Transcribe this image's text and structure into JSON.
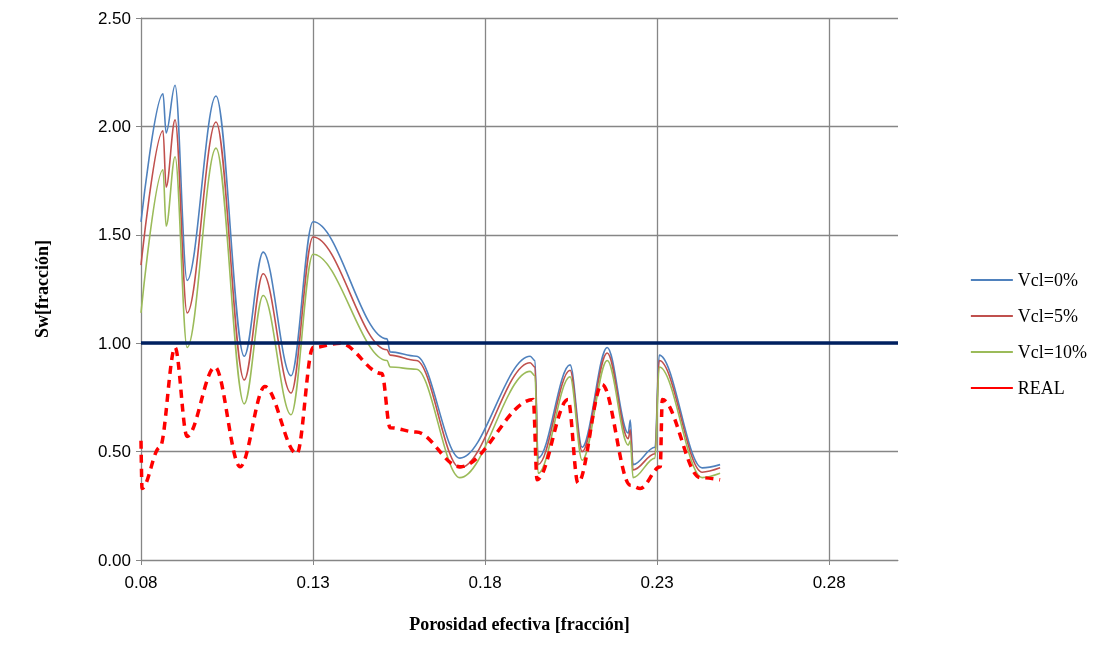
{
  "chart_data": {
    "type": "line",
    "xlabel": "Porosidad efectiva [fracción]",
    "ylabel": "Sw[fracción]",
    "xlim": [
      0.08,
      0.3
    ],
    "xticks": [
      0.08,
      0.13,
      0.18,
      0.23,
      0.28
    ],
    "ylim": [
      0,
      2.5
    ],
    "yticks": [
      {
        "value": 0,
        "label": "0.00"
      },
      {
        "value": 0.5,
        "label": "0.50"
      },
      {
        "value": 1,
        "label": "1.00"
      },
      {
        "value": 1.5,
        "label": "1.50"
      },
      {
        "value": 2,
        "label": "2.00"
      },
      {
        "value": 2.5,
        "label": "2.50"
      }
    ],
    "grid": true,
    "legend": "right",
    "marker": "none",
    "ref_lines": [
      {
        "axis": "y",
        "value": 1,
        "color": "#002060",
        "line_style": "solid"
      }
    ],
    "series": [
      {
        "name": "Vcl=0%",
        "color": "#4f81bd",
        "line_style": "solid",
        "x": [
          0.08,
          0.0864,
          0.0873,
          0.0899,
          0.0934,
          0.1018,
          0.11,
          0.1155,
          0.1236,
          0.13,
          0.1515,
          0.1524,
          0.16,
          0.1727,
          0.1931,
          0.1945,
          0.1954,
          0.2047,
          0.2082,
          0.2155,
          0.2216,
          0.2222,
          0.223,
          0.2294,
          0.2306,
          0.2431,
          0.2483
        ],
        "values": [
          1.56,
          2.15,
          1.97,
          2.19,
          1.29,
          2.14,
          0.94,
          1.42,
          0.85,
          1.56,
          1.02,
          0.96,
          0.94,
          0.47,
          0.94,
          0.92,
          0.47,
          0.9,
          0.52,
          0.98,
          0.585,
          0.645,
          0.44,
          0.52,
          0.945,
          0.425,
          0.44
        ]
      },
      {
        "name": "Vcl=5%",
        "color": "#c0504d",
        "line_style": "solid",
        "x": [
          0.08,
          0.0864,
          0.0873,
          0.0899,
          0.0934,
          0.1018,
          0.11,
          0.1155,
          0.1236,
          0.13,
          0.1515,
          0.1524,
          0.16,
          0.1727,
          0.1931,
          0.1945,
          0.1954,
          0.2047,
          0.2082,
          0.2155,
          0.2216,
          0.2222,
          0.223,
          0.2294,
          0.2306,
          0.2431,
          0.2483
        ],
        "values": [
          1.36,
          1.98,
          1.72,
          2.03,
          1.14,
          2.02,
          0.83,
          1.32,
          0.77,
          1.49,
          0.97,
          0.945,
          0.92,
          0.425,
          0.91,
          0.89,
          0.44,
          0.875,
          0.5,
          0.955,
          0.56,
          0.6,
          0.415,
          0.49,
          0.92,
          0.405,
          0.425
        ]
      },
      {
        "name": "Vcl=10%",
        "color": "#9bbb59",
        "line_style": "solid",
        "x": [
          0.08,
          0.0864,
          0.0873,
          0.0899,
          0.0934,
          0.1018,
          0.11,
          0.1155,
          0.1236,
          0.13,
          0.1515,
          0.1524,
          0.16,
          0.1727,
          0.1931,
          0.1945,
          0.1954,
          0.2047,
          0.2082,
          0.2155,
          0.2216,
          0.2222,
          0.223,
          0.2294,
          0.2306,
          0.2431,
          0.2483
        ],
        "values": [
          1.14,
          1.8,
          1.54,
          1.86,
          0.98,
          1.9,
          0.72,
          1.22,
          0.67,
          1.41,
          0.92,
          0.89,
          0.88,
          0.38,
          0.87,
          0.85,
          0.4,
          0.845,
          0.46,
          0.92,
          0.53,
          0.55,
          0.38,
          0.47,
          0.89,
          0.38,
          0.4
        ]
      },
      {
        "name": "REAL",
        "color": "#ff0000",
        "line_style": "dashed",
        "x": [
          0.08,
          0.0803,
          0.0855,
          0.0899,
          0.0934,
          0.1015,
          0.1088,
          0.116,
          0.1253,
          0.13,
          0.1379,
          0.15,
          0.1524,
          0.16,
          0.1727,
          0.194,
          0.1951,
          0.2041,
          0.207,
          0.214,
          0.2222,
          0.2251,
          0.2309,
          0.2315,
          0.2425,
          0.2483
        ],
        "values": [
          0.55,
          0.33,
          0.52,
          0.98,
          0.57,
          0.89,
          0.43,
          0.8,
          0.49,
          0.98,
          1.0,
          0.86,
          0.61,
          0.59,
          0.43,
          0.74,
          0.37,
          0.74,
          0.355,
          0.81,
          0.345,
          0.33,
          0.43,
          0.74,
          0.38,
          0.37
        ]
      }
    ]
  }
}
